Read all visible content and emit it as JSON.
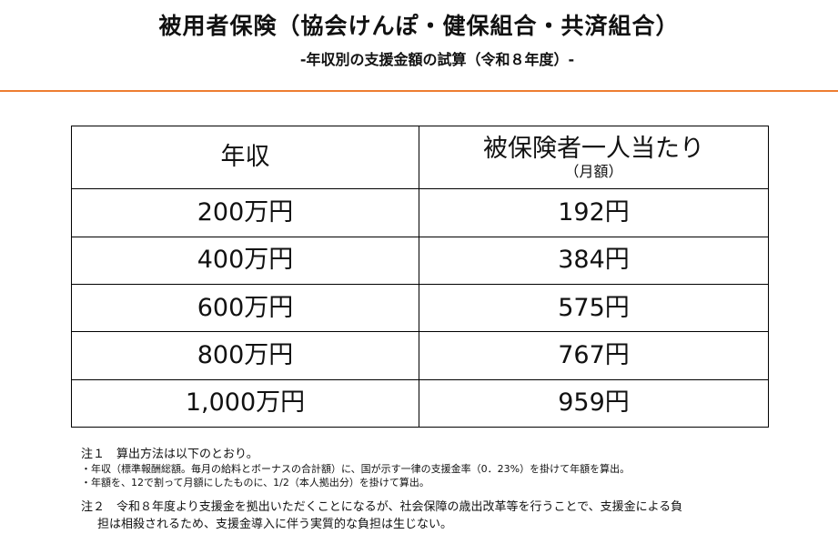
{
  "header": {
    "title": "被用者保険（協会けんぽ・健保組合・共済組合）",
    "subtitle": "-年収別の支援金額の試算（令和８年度）-"
  },
  "table": {
    "col1_header": "年収",
    "col2_header": "被保険者一人当たり",
    "col2_subheader": "（月額）",
    "rows": [
      {
        "income": "200万円",
        "amount": "192円"
      },
      {
        "income": "400万円",
        "amount": "384円"
      },
      {
        "income": "600万円",
        "amount": "575円"
      },
      {
        "income": "800万円",
        "amount": "767円"
      },
      {
        "income": "1,000万円",
        "amount": "959円"
      }
    ]
  },
  "notes": {
    "note1_title": "注１　算出方法は以下のとおり。",
    "note1_items": [
      "・年収（標準報酬総額。毎月の給料とボーナスの合計額）に、国が示す一律の支援金率（0．23%）を掛けて年額を算出。",
      "・年額を、12で割って月額にしたものに、1/2（本人拠出分）を掛けて算出。"
    ],
    "note2_line1": "注２　令和８年度より支援金を拠出いただくことになるが、社会保障の歳出改革等を行うことで、支援金による負",
    "note2_line2": "担は相殺されるため、支援金導入に伴う実質的な負担は生じない。"
  },
  "colors": {
    "accent_rule": "#ed7d31",
    "border": "#000000",
    "text": "#111111"
  }
}
